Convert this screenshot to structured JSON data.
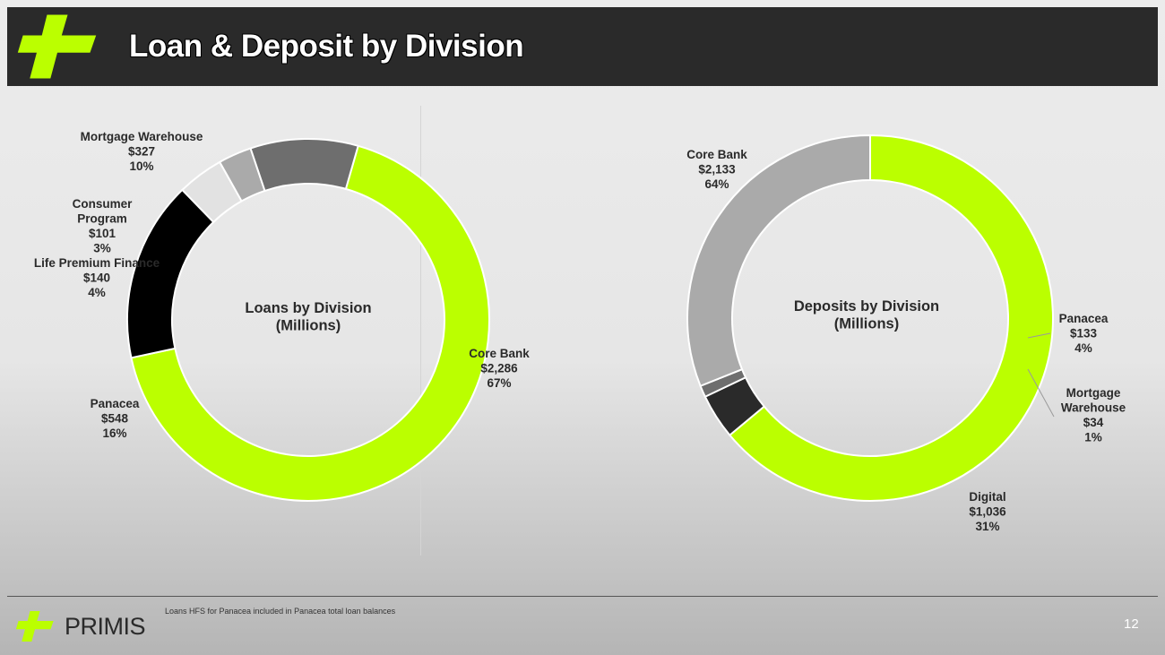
{
  "header": {
    "title": "Loan & Deposit by Division"
  },
  "colors": {
    "brand_green": "#bbff00",
    "header_bg": "#2a2a2a"
  },
  "chart_data": [
    {
      "type": "pie",
      "center_label": [
        "Loans by Division",
        "(Millions)"
      ],
      "slices": [
        {
          "label": [
            "Core Bank"
          ],
          "value": 2286,
          "value_text": "$2,286",
          "pct_text": "67%",
          "color": "#bbff00"
        },
        {
          "label": [
            "Panacea"
          ],
          "value": 548,
          "value_text": "$548",
          "pct_text": "16%",
          "color": "#000000"
        },
        {
          "label": [
            "Life Premium Finance"
          ],
          "value": 140,
          "value_text": "$140",
          "pct_text": "4%",
          "color": "#e2e2e2"
        },
        {
          "label": [
            "Consumer",
            "Program"
          ],
          "value": 101,
          "value_text": "$101",
          "pct_text": "3%",
          "color": "#aaaaaa"
        },
        {
          "label": [
            "Mortgage Warehouse"
          ],
          "value": 327,
          "value_text": "$327",
          "pct_text": "10%",
          "color": "#6e6e6e"
        }
      ]
    },
    {
      "type": "pie",
      "center_label": [
        "Deposits by Division",
        "(Millions)"
      ],
      "slices": [
        {
          "label": [
            "Core Bank"
          ],
          "value": 2133,
          "value_text": "$2,133",
          "pct_text": "64%",
          "color": "#bbff00"
        },
        {
          "label": [
            "Panacea"
          ],
          "value": 133,
          "value_text": "$133",
          "pct_text": "4%",
          "color": "#2a2a2a"
        },
        {
          "label": [
            "Mortgage",
            "Warehouse"
          ],
          "value": 34,
          "value_text": "$34",
          "pct_text": "1%",
          "color": "#6e6e6e"
        },
        {
          "label": [
            "Digital"
          ],
          "value": 1036,
          "value_text": "$1,036",
          "pct_text": "31%",
          "color": "#aaaaaa"
        }
      ]
    }
  ],
  "footer": {
    "brand": "PRIMIS",
    "footnote": "Loans HFS for Panacea included in Panacea total loan balances",
    "page_number": "12"
  }
}
